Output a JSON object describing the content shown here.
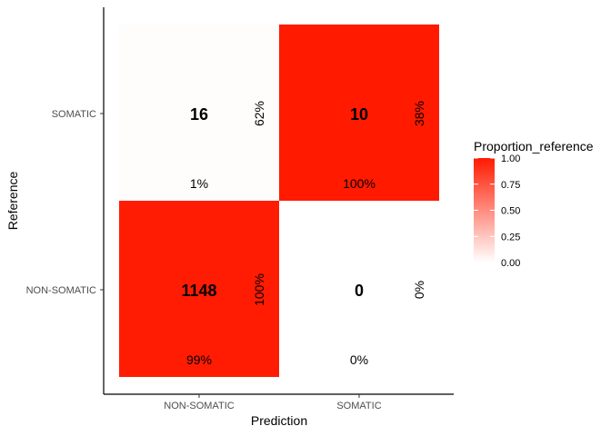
{
  "chart_data": {
    "type": "heatmap",
    "title": "",
    "xlabel": "Prediction",
    "ylabel": "Reference",
    "x_categories": [
      "NON-SOMATIC",
      "SOMATIC"
    ],
    "y_categories": [
      "NON-SOMATIC",
      "SOMATIC"
    ],
    "cells": [
      {
        "prediction": "NON-SOMATIC",
        "reference": "SOMATIC",
        "count": "16",
        "proportion_reference": 0.01,
        "pct_col": "1%",
        "pct_row": "62%"
      },
      {
        "prediction": "SOMATIC",
        "reference": "SOMATIC",
        "count": "10",
        "proportion_reference": 1.0,
        "pct_col": "100%",
        "pct_row": "38%"
      },
      {
        "prediction": "NON-SOMATIC",
        "reference": "NON-SOMATIC",
        "count": "1148",
        "proportion_reference": 0.99,
        "pct_col": "99%",
        "pct_row": "100%"
      },
      {
        "prediction": "SOMATIC",
        "reference": "NON-SOMATIC",
        "count": "0",
        "proportion_reference": 0.0,
        "pct_col": "0%",
        "pct_row": "0%"
      }
    ],
    "legend": {
      "title": "Proportion_reference",
      "ticks": [
        "1.00",
        "0.75",
        "0.50",
        "0.25",
        "0.00"
      ],
      "low_color": "#ffffff",
      "high_color": "#ff1a00",
      "range": [
        0,
        1
      ],
      "placement": "right"
    }
  }
}
